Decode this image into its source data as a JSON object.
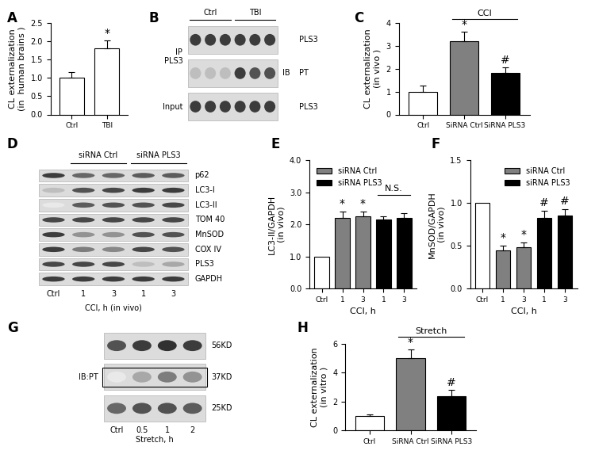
{
  "chart_data": [
    {
      "panel": "A",
      "type": "bar",
      "y_label": "CL externalization\n(in  human brains )",
      "categories": [
        "Ctrl",
        "TBI"
      ],
      "values": [
        1.0,
        1.8
      ],
      "error": [
        0.15,
        0.22
      ],
      "colors": [
        "#ffffff",
        "#ffffff"
      ],
      "ylim": [
        0,
        2.5
      ],
      "yticks": [
        {
          "value": 0,
          "label": "0.0"
        },
        {
          "value": 0.5,
          "label": "0.5"
        },
        {
          "value": 1.0,
          "label": "1.0"
        },
        {
          "value": 1.5,
          "label": "1.5"
        },
        {
          "value": 2.0,
          "label": "2.0"
        },
        {
          "value": 2.5,
          "label": "2.5"
        }
      ],
      "annotations": [
        {
          "text": "*",
          "category_index": 1
        }
      ]
    },
    {
      "panel": "C",
      "type": "bar",
      "y_label": "CL externalization\n(in vivo )",
      "categories": [
        "Ctrl",
        "SiRNA Ctrl",
        "SiRNA PLS3"
      ],
      "values": [
        1.0,
        3.2,
        1.8
      ],
      "error": [
        0.25,
        0.4,
        0.25
      ],
      "colors": [
        "#ffffff",
        "#808080",
        "#000000"
      ],
      "ylim": [
        0,
        4
      ],
      "yticks": [
        0,
        1,
        2,
        3,
        4
      ],
      "annotations": [
        {
          "text": "*",
          "category_index": 1
        },
        {
          "text": "#",
          "category_index": 2
        }
      ],
      "brackets": [
        {
          "text": "CCI",
          "from": 1,
          "to": 2
        }
      ]
    },
    {
      "panel": "E",
      "type": "bar",
      "y_label": "LC3-II/GAPDH\n(in vivo)",
      "x_label": "CCI, h",
      "categories": [
        "Ctrl",
        "1",
        "3",
        "1",
        "3"
      ],
      "series": [
        {
          "color": "#ffffff",
          "values": [
            1.0,
            null,
            null,
            null,
            null
          ],
          "error": [
            null,
            null,
            null,
            null,
            null
          ]
        },
        {
          "name": "siRNA Ctrl",
          "color": "#808080",
          "values": [
            null,
            2.2,
            2.25,
            null,
            null
          ],
          "error": [
            null,
            0.2,
            0.15,
            null,
            null
          ]
        },
        {
          "name": "siRNA PLS3",
          "color": "#000000",
          "values": [
            null,
            null,
            null,
            2.15,
            2.2
          ],
          "error": [
            null,
            null,
            null,
            0.1,
            0.15
          ]
        }
      ],
      "ylim": [
        0,
        4
      ],
      "yticks": [
        {
          "value": 0,
          "label": "0.0"
        },
        {
          "value": 1,
          "label": "1.0"
        },
        {
          "value": 2,
          "label": "2.0"
        },
        {
          "value": 3,
          "label": "3.0"
        },
        {
          "value": 4,
          "label": "4.0"
        }
      ],
      "legend": "upper left",
      "annotations": [
        {
          "text": "*",
          "category_index": 1
        },
        {
          "text": "*",
          "category_index": 2
        }
      ],
      "brackets": [
        {
          "text": "N.S.",
          "from": 3,
          "to": 4
        }
      ]
    },
    {
      "panel": "F",
      "type": "bar",
      "y_label": "MnSOD/GAPDH\n(in vivo)",
      "x_label": "CCI, h",
      "categories": [
        "Ctrl",
        "1",
        "3",
        "1",
        "3"
      ],
      "series": [
        {
          "color": "#ffffff",
          "values": [
            1.0,
            null,
            null,
            null,
            null
          ],
          "error": [
            null,
            null,
            null,
            null,
            null
          ]
        },
        {
          "name": "siRNA Ctrl",
          "color": "#808080",
          "values": [
            null,
            0.45,
            0.48,
            null,
            null
          ],
          "error": [
            null,
            0.05,
            0.06,
            null,
            null
          ]
        },
        {
          "name": "siRNA PLS3",
          "color": "#000000",
          "values": [
            null,
            null,
            null,
            0.83,
            0.85
          ],
          "error": [
            null,
            null,
            null,
            0.08,
            0.08
          ]
        }
      ],
      "ylim": [
        0,
        1.5
      ],
      "yticks": [
        {
          "value": 0,
          "label": "0.0"
        },
        {
          "value": 0.5,
          "label": "0.5"
        },
        {
          "value": 1.0,
          "label": "1.0"
        },
        {
          "value": 1.5,
          "label": "1.5"
        }
      ],
      "legend": "upper right",
      "annotations": [
        {
          "text": "*",
          "category_index": 1
        },
        {
          "text": "*",
          "category_index": 2
        },
        {
          "text": "#",
          "category_index": 3
        },
        {
          "text": "#",
          "category_index": 4
        }
      ]
    },
    {
      "panel": "H",
      "type": "bar",
      "y_label": "CL externalization\n(in vitro )",
      "categories": [
        "Ctrl",
        "SiRNA Ctrl",
        "SiRNA PLS3"
      ],
      "values": [
        1.0,
        5.0,
        2.35
      ],
      "error": [
        0.12,
        0.6,
        0.45
      ],
      "colors": [
        "#ffffff",
        "#808080",
        "#000000"
      ],
      "ylim": [
        0,
        6
      ],
      "yticks": [
        0,
        2,
        4,
        6
      ],
      "annotations": [
        {
          "text": "*",
          "category_index": 1
        },
        {
          "text": "#",
          "category_index": 2
        }
      ],
      "brackets": [
        {
          "text": "Stretch",
          "from": 1,
          "to": 2
        }
      ]
    }
  ],
  "blots": [
    {
      "panel": "B",
      "groups": [
        {
          "label": "Ctrl",
          "lanes": [
            0,
            1,
            2
          ]
        },
        {
          "label": "TBI",
          "lanes": [
            3,
            4,
            5
          ]
        }
      ],
      "rows": [
        {
          "label": "PLS3",
          "intensity": [
            0.9,
            0.9,
            0.9,
            0.9,
            0.9,
            0.9
          ]
        },
        {
          "label": "PT",
          "intensity": [
            0.3,
            0.3,
            0.3,
            0.9,
            0.8,
            0.8
          ]
        },
        {
          "label": "PLS3",
          "intensity": [
            0.9,
            0.9,
            0.9,
            0.9,
            0.9,
            0.9
          ]
        }
      ],
      "left_labels": [
        {
          "text": "IP\nPLS3",
          "rows": [
            0,
            1
          ]
        },
        {
          "text": "Input",
          "rows": [
            2
          ]
        }
      ],
      "right_label": {
        "text": "IB",
        "rows": [
          0,
          1,
          2
        ]
      }
    },
    {
      "panel": "D",
      "groups": [
        {
          "label": "siRNA Ctrl",
          "lanes": [
            1,
            2
          ]
        },
        {
          "label": "siRNA PLS3",
          "lanes": [
            3,
            4
          ]
        }
      ],
      "rows": [
        {
          "label": "p62",
          "intensity": [
            0.9,
            0.7,
            0.7,
            0.75,
            0.75
          ]
        },
        {
          "label": "LC3-I",
          "intensity": [
            0.3,
            0.8,
            0.85,
            0.9,
            0.9
          ]
        },
        {
          "label": "LC3-II",
          "intensity": [
            0.1,
            0.75,
            0.8,
            0.8,
            0.85
          ]
        },
        {
          "label": "TOM 40",
          "intensity": [
            0.85,
            0.85,
            0.85,
            0.85,
            0.85
          ]
        },
        {
          "label": "MnSOD",
          "intensity": [
            0.9,
            0.5,
            0.5,
            0.8,
            0.8
          ]
        },
        {
          "label": "COX IV",
          "intensity": [
            0.9,
            0.6,
            0.55,
            0.85,
            0.8
          ]
        },
        {
          "label": "PLS3",
          "intensity": [
            0.85,
            0.85,
            0.85,
            0.3,
            0.4
          ]
        },
        {
          "label": "GAPDH",
          "intensity": [
            0.9,
            0.9,
            0.9,
            0.9,
            0.9
          ]
        }
      ],
      "lane_labels": [
        "Ctrl",
        "1",
        "3",
        "1",
        "3"
      ],
      "x_label": "CCI, h (in vivo)"
    },
    {
      "panel": "G",
      "rows": [
        {
          "label": "56KD",
          "intensity": [
            0.8,
            0.9,
            0.95,
            0.9
          ]
        },
        {
          "label": "37KD",
          "intensity": [
            0.1,
            0.4,
            0.6,
            0.5
          ]
        },
        {
          "label": "25KD",
          "intensity": [
            0.7,
            0.8,
            0.8,
            0.75
          ]
        }
      ],
      "box": {
        "text": "IB:PT",
        "row": 1
      },
      "lane_labels": [
        "Ctrl",
        "0.5",
        "1",
        "2"
      ],
      "x_label": "Stretch, h"
    }
  ]
}
